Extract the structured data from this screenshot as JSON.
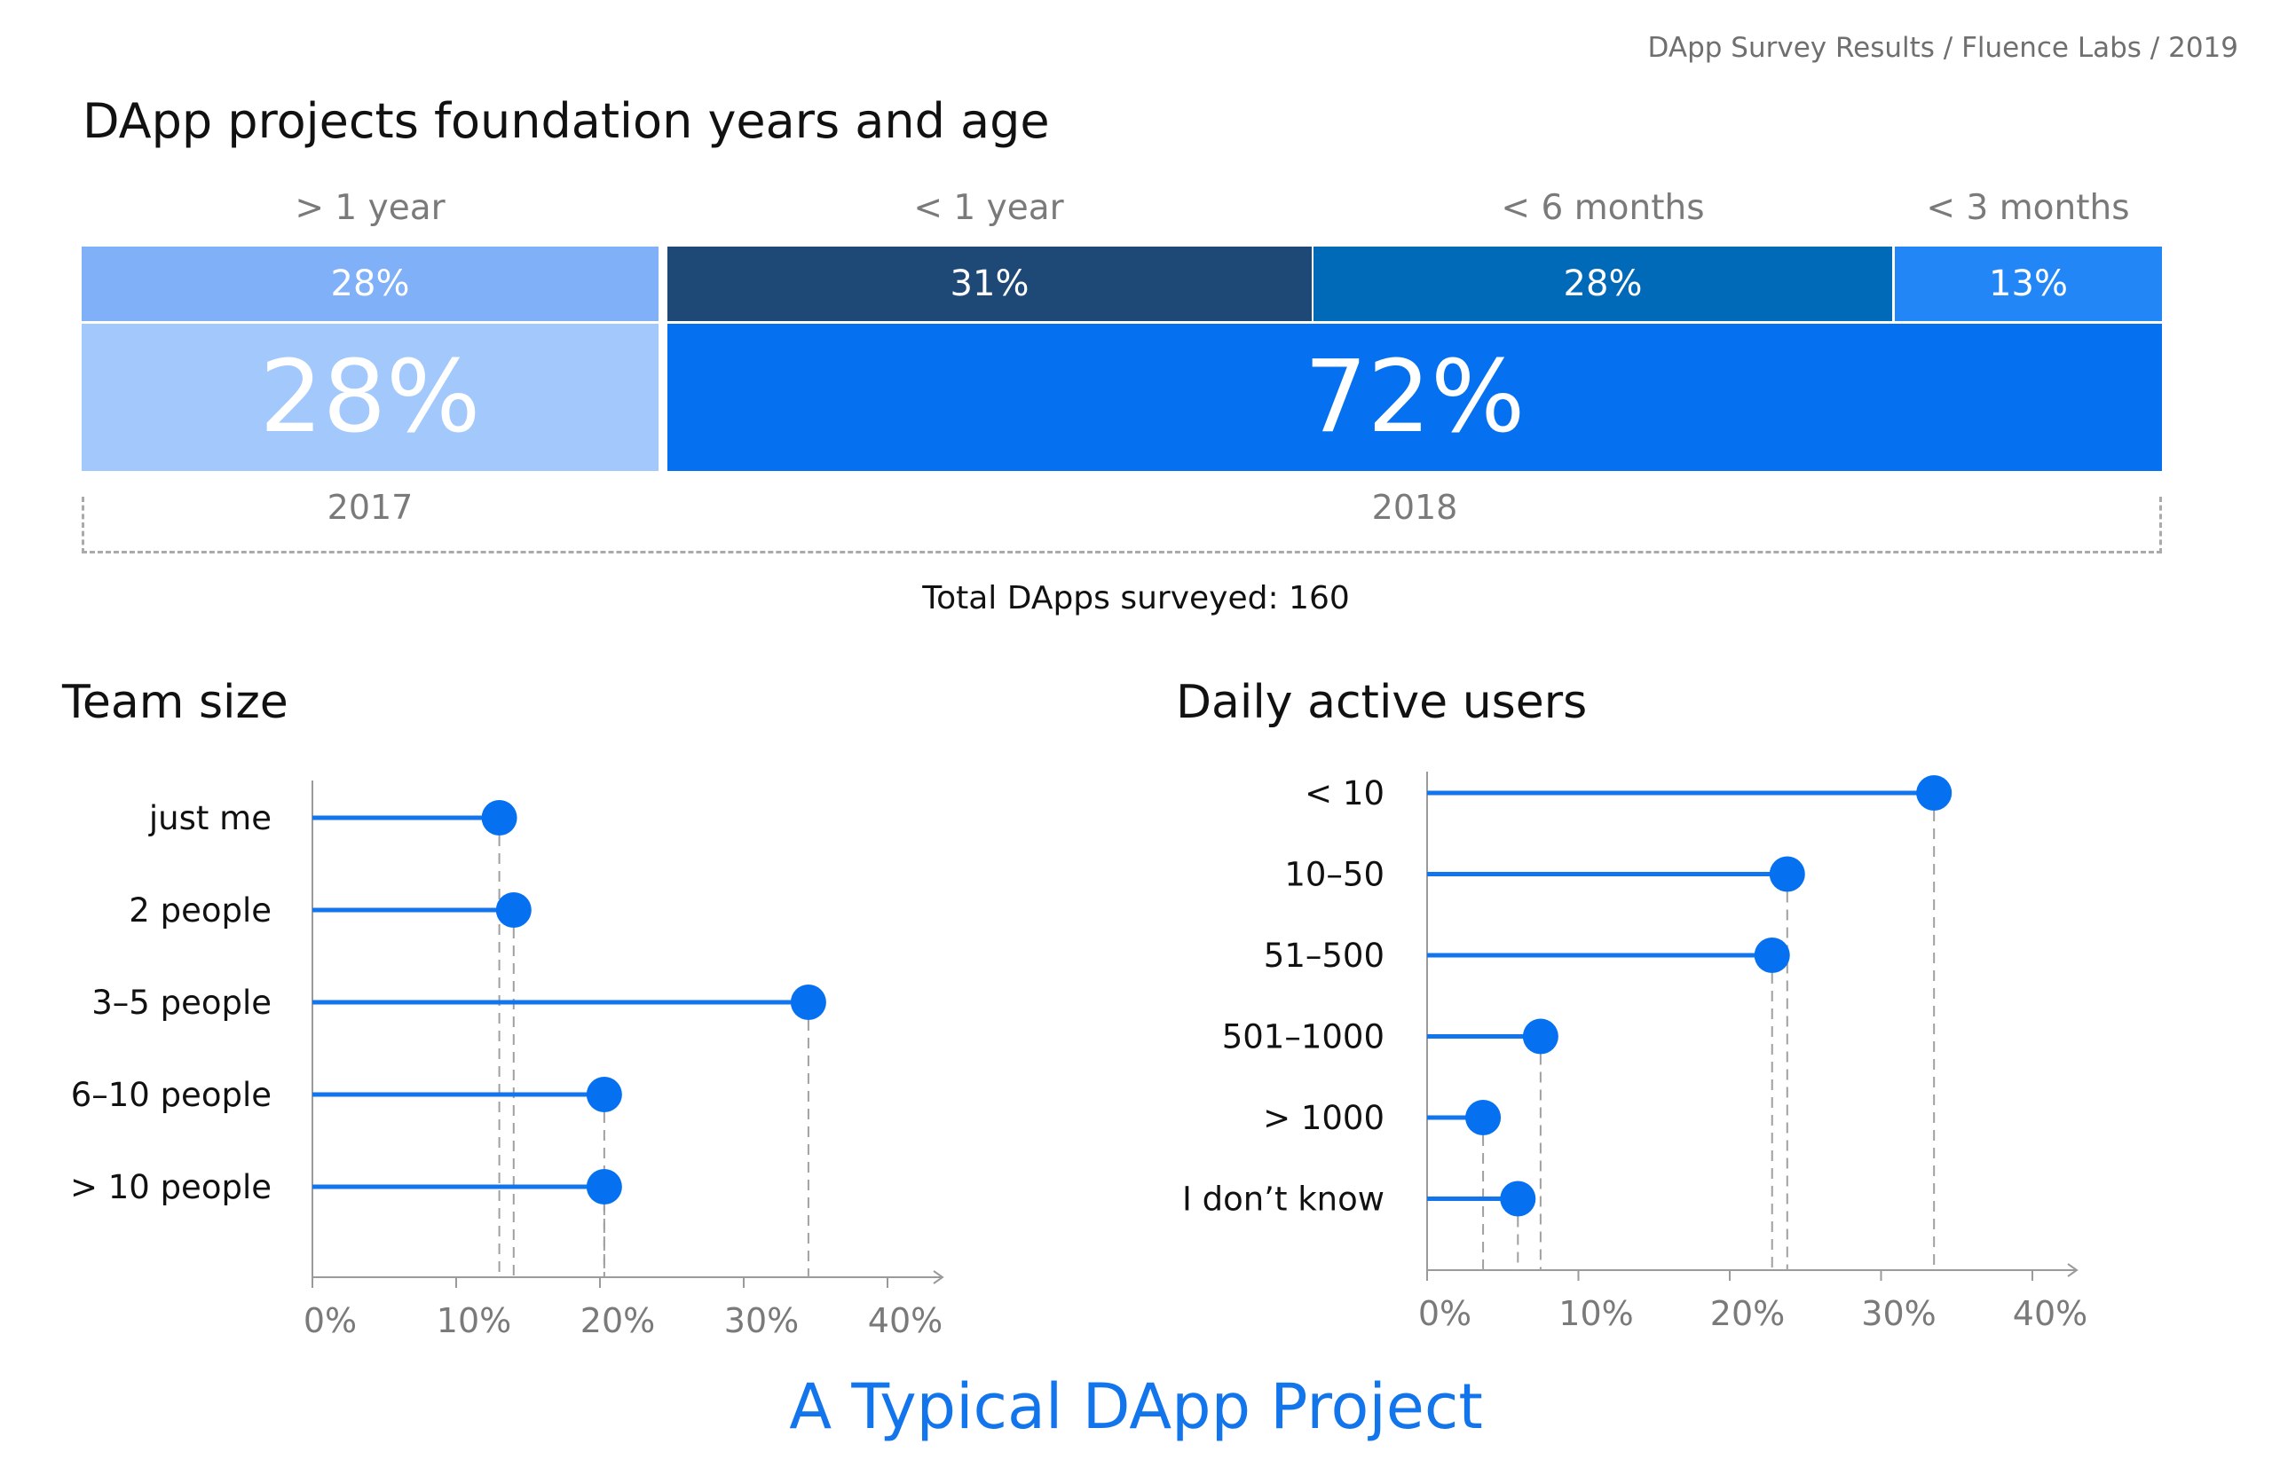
{
  "source": "DApp Survey Results / Fluence Labs / 2019",
  "main_title": "DApp projects foundation years and age",
  "footer_title": "A Typical DApp Project",
  "colors": {
    "accent": "#1375eb",
    "bar_light": "#a3c8fc",
    "bar_light_top": "#7fb0f8",
    "bar_dark": "#1e4876",
    "bar_mid": "#0069b8",
    "bar_bright": "#2286f6",
    "big_blue": "#0571f0"
  },
  "chart_data": [
    {
      "type": "bar",
      "stacked": true,
      "title": "DApp projects foundation years and age",
      "age_labels": [
        "> 1 year",
        "< 1 year",
        "< 6 months",
        "< 3 months"
      ],
      "age_values": [
        "28%",
        "31%",
        "28%",
        "13%"
      ],
      "years": [
        "2017",
        "2018"
      ],
      "year_values": [
        "28%",
        "72%"
      ],
      "total": "Total DApps surveyed: 160"
    },
    {
      "type": "scatter",
      "title": "Team size",
      "categories": [
        "just me",
        "2 people",
        "3–5 people",
        "6–10 people",
        "> 10 people"
      ],
      "values": [
        13,
        14,
        34.5,
        20.3,
        20.3
      ],
      "xlim": [
        0,
        40
      ],
      "xticks": [
        "0%",
        "10%",
        "20%",
        "30%",
        "40%"
      ]
    },
    {
      "type": "scatter",
      "title": "Daily active users",
      "categories": [
        "< 10",
        "10–50",
        "51–500",
        "501–1000",
        "> 1000",
        "I don’t know"
      ],
      "values": [
        33.5,
        23.8,
        22.8,
        7.5,
        3.7,
        6
      ],
      "xlim": [
        0,
        40
      ],
      "xticks": [
        "0%",
        "10%",
        "20%",
        "30%",
        "40%"
      ]
    }
  ]
}
